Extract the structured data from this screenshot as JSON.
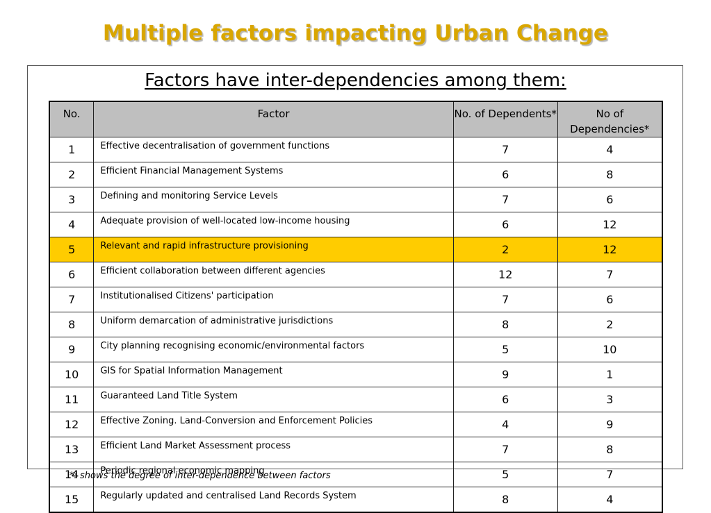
{
  "slide": {
    "title": "Multiple factors impacting Urban Change",
    "subtitle": "Factors have inter-dependencies among them:",
    "footnote": "*: shows the degree of inter-dependence between factors",
    "title_color": "#d9a600",
    "highlight_color": "#ffcc00",
    "header_bg_color": "#bfbfbf"
  },
  "table": {
    "headers": {
      "no": "No.",
      "factor": "Factor",
      "dependents": "No. of Dependents*",
      "dependencies": "No of Dependencies*"
    },
    "highlighted_row_no": "5",
    "rows": [
      {
        "no": "1",
        "factor": "Effective decentralisation of government functions",
        "dependents": "7",
        "dependencies": "4"
      },
      {
        "no": "2",
        "factor": "Efficient Financial Management Systems",
        "dependents": "6",
        "dependencies": "8"
      },
      {
        "no": "3",
        "factor": "Defining and monitoring Service Levels",
        "dependents": "7",
        "dependencies": "6"
      },
      {
        "no": "4",
        "factor": "Adequate provision of well-located low-income housing",
        "dependents": "6",
        "dependencies": "12"
      },
      {
        "no": "5",
        "factor": "Relevant and rapid infrastructure provisioning",
        "dependents": "2",
        "dependencies": "12"
      },
      {
        "no": "6",
        "factor": "Efficient collaboration between different agencies",
        "dependents": "12",
        "dependencies": "7"
      },
      {
        "no": "7",
        "factor": "Institutionalised Citizens' participation",
        "dependents": "7",
        "dependencies": "6"
      },
      {
        "no": "8",
        "factor": "Uniform demarcation of administrative jurisdictions",
        "dependents": "8",
        "dependencies": "2"
      },
      {
        "no": "9",
        "factor": "City planning recognising economic/environmental factors",
        "dependents": "5",
        "dependencies": "10"
      },
      {
        "no": "10",
        "factor": "GIS for Spatial Information Management",
        "dependents": "9",
        "dependencies": "1"
      },
      {
        "no": "11",
        "factor": "Guaranteed Land Title System",
        "dependents": "6",
        "dependencies": "3"
      },
      {
        "no": "12",
        "factor": "Effective Zoning. Land-Conversion and Enforcement Policies",
        "dependents": "4",
        "dependencies": "9"
      },
      {
        "no": "13",
        "factor": "Efficient Land Market Assessment  process",
        "dependents": "7",
        "dependencies": "8"
      },
      {
        "no": "14",
        "factor": "Periodic regional economic mapping",
        "dependents": "5",
        "dependencies": "7"
      },
      {
        "no": "15",
        "factor": "Regularly updated and centralised Land Records System",
        "dependents": "8",
        "dependencies": "4"
      }
    ]
  }
}
